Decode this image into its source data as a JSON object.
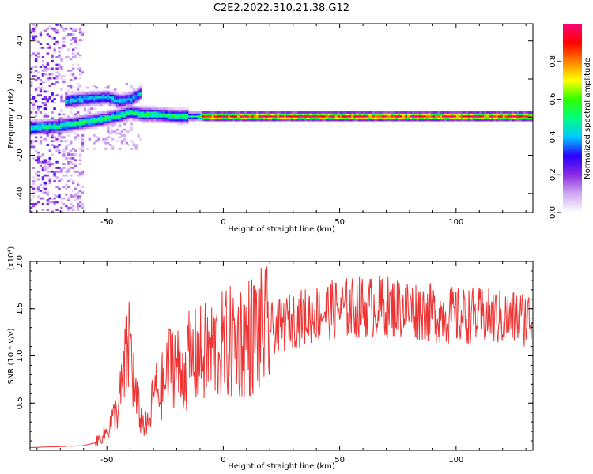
{
  "figure": {
    "title": "C2E2.2022.310.21.38.G12"
  },
  "chart_data": [
    {
      "type": "heatmap",
      "xlabel": "Height of straight line (km)",
      "ylabel": "Frequency (Hz)",
      "xlim": [
        -83,
        133
      ],
      "ylim": [
        -50,
        49
      ],
      "xticks": [
        -50,
        0,
        50,
        100
      ],
      "yticks": [
        -40,
        -20,
        0,
        20,
        40
      ],
      "colorbar": {
        "label": "Normalized spectral amplitude",
        "range": [
          0,
          1
        ],
        "ticks": [
          0.0,
          0.2,
          0.4,
          0.6,
          0.8
        ]
      },
      "colormap": [
        "#ffffff",
        "#cfa8f2",
        "#8a2be2",
        "#2a00ff",
        "#00c8ff",
        "#00ff80",
        "#30ff00",
        "#ffff00",
        "#ff8000",
        "#ff0000",
        "#ff0080"
      ],
      "ridges": [
        {
          "x": [
            -83,
            -70,
            -60,
            -50,
            -40,
            -35,
            -30,
            -20,
            -15,
            -10,
            0,
            133
          ],
          "y": [
            -6,
            -5,
            -3,
            -1,
            2,
            1,
            1,
            0,
            0,
            0,
            0,
            0
          ]
        },
        {
          "x": [
            -68,
            -60,
            -50,
            -45,
            -40,
            -36
          ],
          "y": [
            8,
            9,
            10,
            8,
            9,
            12
          ]
        }
      ]
    },
    {
      "type": "line",
      "xlabel": "Height of straight line (km)",
      "ylabel": "SNR (10 * v/v)",
      "y_multiplier": "(x10⁴)",
      "xlim": [
        -83,
        133
      ],
      "ylim": [
        0,
        2.0
      ],
      "xticks": [
        -50,
        0,
        50,
        100
      ],
      "yticks": [
        0.5,
        1.0,
        1.5,
        2.0
      ],
      "series": [
        {
          "color": "#ee3333",
          "x": [
            -83,
            -70,
            -60,
            -55,
            -50,
            -45,
            -42,
            -40,
            -38,
            -35,
            -32,
            -30,
            -25,
            -22,
            -20,
            -18,
            -15,
            -10,
            -5,
            0,
            5,
            10,
            15,
            20,
            25,
            30,
            40,
            50,
            60,
            70,
            80,
            90,
            100,
            110,
            120,
            133
          ],
          "y": [
            0.03,
            0.04,
            0.05,
            0.08,
            0.2,
            0.45,
            0.9,
            1.2,
            0.6,
            0.3,
            0.25,
            0.6,
            0.7,
            1.0,
            0.9,
            0.8,
            0.95,
            1.0,
            1.05,
            1.1,
            1.15,
            1.2,
            1.25,
            1.28,
            1.32,
            1.38,
            1.45,
            1.5,
            1.52,
            1.52,
            1.5,
            1.45,
            1.42,
            1.42,
            1.4,
            1.4
          ]
        }
      ]
    }
  ]
}
